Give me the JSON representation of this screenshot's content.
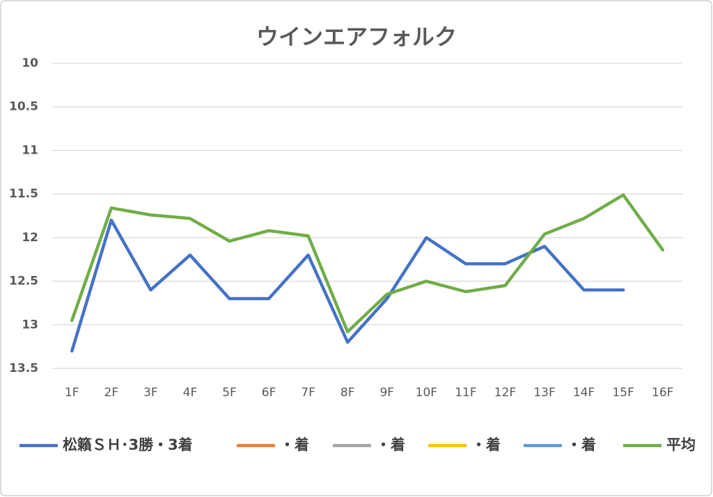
{
  "chart_data": {
    "type": "line",
    "title": "ウインエアフォルク",
    "categories": [
      "1F",
      "2F",
      "3F",
      "4F",
      "5F",
      "6F",
      "7F",
      "8F",
      "9F",
      "10F",
      "11F",
      "12F",
      "13F",
      "14F",
      "15F",
      "16F"
    ],
    "series": [
      {
        "name": "松籟ＳＨ･3勝・3着",
        "color": "#4472c4",
        "values": [
          13.3,
          11.8,
          12.6,
          12.2,
          12.7,
          12.7,
          12.2,
          13.2,
          12.7,
          12.0,
          12.3,
          12.3,
          12.1,
          12.6,
          12.6,
          null
        ]
      },
      {
        "name": "・着",
        "color": "#ed7d31",
        "values": [
          null,
          null,
          null,
          null,
          null,
          null,
          null,
          null,
          null,
          null,
          null,
          null,
          null,
          null,
          null,
          null
        ]
      },
      {
        "name": "・着",
        "color": "#a5a5a5",
        "values": [
          null,
          null,
          null,
          null,
          null,
          null,
          null,
          null,
          null,
          null,
          null,
          null,
          null,
          null,
          null,
          null
        ]
      },
      {
        "name": "・着",
        "color": "#ffc000",
        "values": [
          null,
          null,
          null,
          null,
          null,
          null,
          null,
          null,
          null,
          null,
          null,
          null,
          null,
          null,
          null,
          null
        ]
      },
      {
        "name": "・着",
        "color": "#5b9bd5",
        "values": [
          null,
          null,
          null,
          null,
          null,
          null,
          null,
          null,
          null,
          null,
          null,
          null,
          null,
          null,
          null,
          null
        ]
      },
      {
        "name": "平均",
        "color": "#70ad47",
        "values": [
          12.95,
          11.66,
          11.74,
          11.78,
          12.04,
          11.92,
          11.98,
          13.08,
          12.65,
          12.5,
          12.62,
          12.55,
          11.96,
          11.78,
          11.51,
          12.14
        ]
      }
    ],
    "ylim": [
      10,
      13.5
    ],
    "y_inverted": true,
    "yticks": [
      10,
      10.5,
      11,
      11.5,
      12,
      12.5,
      13,
      13.5
    ],
    "grid": true,
    "legend": "bottom"
  }
}
